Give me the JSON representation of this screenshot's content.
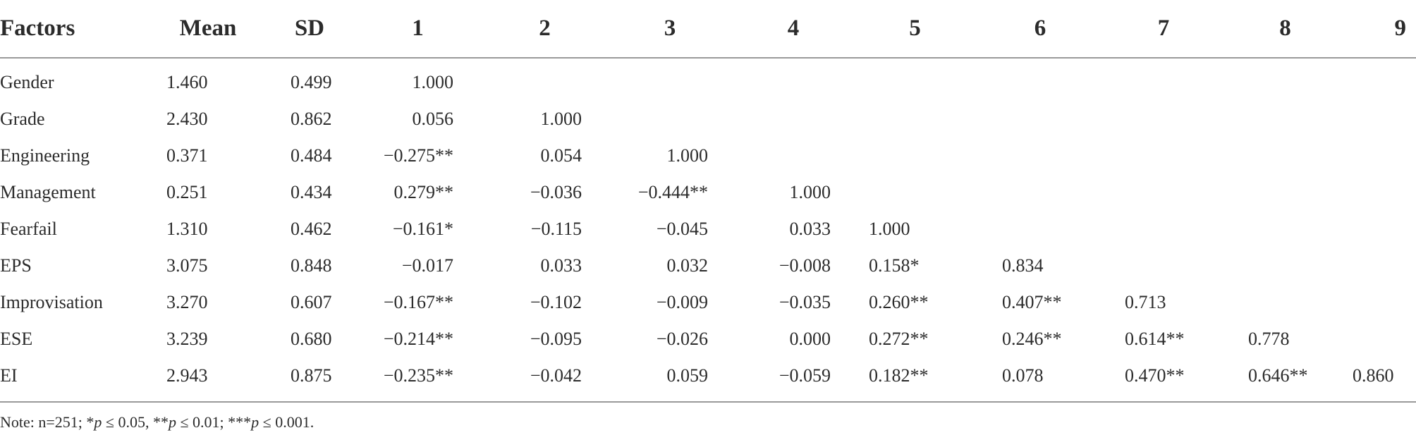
{
  "table": {
    "headers": [
      "Factors",
      "Mean",
      "SD",
      "1",
      "2",
      "3",
      "4",
      "5",
      "6",
      "7",
      "8",
      "9"
    ],
    "rows": [
      {
        "factor": "Gender",
        "mean": "1.460",
        "sd": "0.499",
        "cells": [
          "1.000",
          "",
          "",
          "",
          "",
          "",
          "",
          "",
          ""
        ]
      },
      {
        "factor": "Grade",
        "mean": "2.430",
        "sd": "0.862",
        "cells": [
          "0.056",
          "1.000",
          "",
          "",
          "",
          "",
          "",
          "",
          ""
        ]
      },
      {
        "factor": "Engineering",
        "mean": "0.371",
        "sd": "0.484",
        "cells": [
          "−0.275**",
          "0.054",
          "1.000",
          "",
          "",
          "",
          "",
          "",
          ""
        ]
      },
      {
        "factor": "Management",
        "mean": "0.251",
        "sd": "0.434",
        "cells": [
          "0.279**",
          "−0.036",
          "−0.444**",
          "1.000",
          "",
          "",
          "",
          "",
          ""
        ]
      },
      {
        "factor": "Fearfail",
        "mean": "1.310",
        "sd": "0.462",
        "cells": [
          "−0.161*",
          "−0.115",
          "−0.045",
          "0.033",
          "1.000",
          "",
          "",
          "",
          ""
        ]
      },
      {
        "factor": "EPS",
        "mean": "3.075",
        "sd": "0.848",
        "cells": [
          "−0.017",
          "0.033",
          "0.032",
          "−0.008",
          "0.158*",
          "0.834",
          "",
          "",
          ""
        ]
      },
      {
        "factor": "Improvisation",
        "mean": "3.270",
        "sd": "0.607",
        "cells": [
          "−0.167**",
          "−0.102",
          "−0.009",
          "−0.035",
          "0.260**",
          "0.407**",
          "0.713",
          "",
          ""
        ]
      },
      {
        "factor": "ESE",
        "mean": "3.239",
        "sd": "0.680",
        "cells": [
          "−0.214**",
          "−0.095",
          "−0.026",
          "0.000",
          "0.272**",
          "0.246**",
          "0.614**",
          "0.778",
          ""
        ]
      },
      {
        "factor": "EI",
        "mean": "2.943",
        "sd": "0.875",
        "cells": [
          "−0.235**",
          "−0.042",
          "0.059",
          "−0.059",
          "0.182**",
          "0.078",
          "0.470**",
          "0.646**",
          "0.860"
        ]
      }
    ]
  },
  "note": {
    "prefix": "Note: n=251; *",
    "p1": "p",
    "t1": " ≤ 0.05, **",
    "p2": "p",
    "t2": " ≤ 0.01; ***",
    "p3": "p",
    "t3": " ≤ 0.001."
  }
}
